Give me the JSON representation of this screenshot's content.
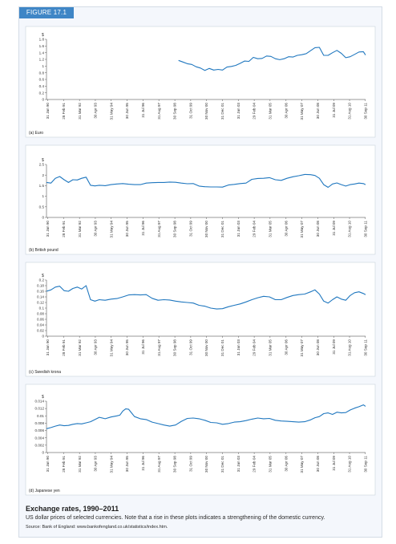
{
  "figure": {
    "label": "FIGURE 17.1",
    "caption_title": "Exchange rates, 1990–2011",
    "caption_text": "US dollar prices of selected currencies. Note that a rise in these plots indicates a strengthening of the domestic currency.",
    "source": "Source: Bank of England: www.bankofengland.co.uk/statistics/index.htm."
  },
  "colors": {
    "line": "#1f77bf",
    "tab": "#3f86c6",
    "panel_bg": "#ffffff"
  },
  "chart_data": [
    {
      "type": "line",
      "panel": "(a) Euro",
      "unit_label": "$",
      "ylim": [
        0,
        1.8
      ],
      "yticks": [
        0,
        0.2,
        0.4,
        0.6,
        0.8,
        1,
        1.2,
        1.4,
        1.6,
        1.8
      ],
      "ytick_labels": [
        "0",
        "0.2",
        "0.4",
        "0.6",
        "0.8",
        "1",
        "1.2",
        "1.4",
        "1.6",
        "1.8"
      ],
      "xlim": [
        1990.0,
        2011.75
      ],
      "xticks": [
        1990.08,
        1991.16,
        1992.25,
        1993.33,
        1994.41,
        1995.5,
        1996.58,
        1997.66,
        1998.75,
        1999.83,
        2000.91,
        2001.99,
        2003.08,
        2004.16,
        2005.24,
        2006.33,
        2007.41,
        2008.49,
        2009.58,
        2010.66,
        2011.74
      ],
      "xtick_labels": [
        "31 Jan 90",
        "28 Feb 91",
        "31 Mar 92",
        "30 Apr 93",
        "31 May 94",
        "30 Jun 95",
        "31 Jul 96",
        "31 Aug 97",
        "30 Sep 98",
        "31 Oct 99",
        "30 Nov 00",
        "31 Dec 01",
        "31 Jan 03",
        "29 Feb 04",
        "31 Mar 05",
        "30 Apr 06",
        "31 May 07",
        "30 Jun 08",
        "31 Jul 09",
        "31 Aug 10",
        "30 Sep 11"
      ],
      "series": [
        {
          "x": [
            1999.0,
            1999.3,
            1999.6,
            1999.9,
            2000.2,
            2000.5,
            2000.8,
            2001.1,
            2001.4,
            2001.7,
            2002.0,
            2002.3,
            2002.6,
            2002.9,
            2003.2,
            2003.5,
            2003.8,
            2004.1,
            2004.4,
            2004.7,
            2005.0,
            2005.3,
            2005.6,
            2005.9,
            2006.2,
            2006.5,
            2006.8,
            2007.1,
            2007.4,
            2007.7,
            2008.0,
            2008.3,
            2008.6,
            2008.9,
            2009.2,
            2009.5,
            2009.8,
            2010.1,
            2010.4,
            2010.7,
            2011.0,
            2011.3,
            2011.6,
            2011.75
          ],
          "y": [
            1.17,
            1.12,
            1.07,
            1.05,
            0.98,
            0.94,
            0.87,
            0.93,
            0.88,
            0.9,
            0.88,
            0.97,
            0.99,
            1.02,
            1.08,
            1.15,
            1.14,
            1.26,
            1.22,
            1.23,
            1.3,
            1.29,
            1.22,
            1.19,
            1.22,
            1.28,
            1.27,
            1.32,
            1.34,
            1.37,
            1.46,
            1.55,
            1.56,
            1.32,
            1.32,
            1.4,
            1.47,
            1.38,
            1.25,
            1.28,
            1.35,
            1.42,
            1.43,
            1.33
          ]
        }
      ]
    },
    {
      "type": "line",
      "panel": "(b) British pound",
      "unit_label": "$",
      "ylim": [
        0,
        2.5
      ],
      "yticks": [
        0,
        0.5,
        1,
        1.5,
        2,
        2.5
      ],
      "ytick_labels": [
        "0",
        "0.5",
        "1",
        "1.5",
        "2",
        "2.5"
      ],
      "xlim": [
        1990.0,
        2011.75
      ],
      "xticks": [
        1990.08,
        1991.16,
        1992.25,
        1993.33,
        1994.41,
        1995.5,
        1996.58,
        1997.66,
        1998.75,
        1999.83,
        2000.91,
        2001.99,
        2003.08,
        2004.16,
        2005.24,
        2006.33,
        2007.41,
        2008.49,
        2009.58,
        2010.66,
        2011.74
      ],
      "xtick_labels": [
        "31 Jan 90",
        "28 Feb 91",
        "31 Mar 92",
        "30 Apr 93",
        "31 May 94",
        "30 Jun 95",
        "31 Jul 96",
        "31 Aug 97",
        "30 Sep 98",
        "31 Oct 99",
        "30 Nov 00",
        "31 Dec 01",
        "31 Jan 03",
        "29 Feb 04",
        "31 Mar 05",
        "30 Apr 06",
        "31 May 07",
        "30 Jun 08",
        "31 Jul 09",
        "31 Aug 10",
        "30 Sep 11"
      ],
      "series": [
        {
          "x": [
            1990.0,
            1990.3,
            1990.6,
            1990.9,
            1991.2,
            1991.5,
            1991.8,
            1992.1,
            1992.4,
            1992.7,
            1993.0,
            1993.3,
            1993.6,
            1994.0,
            1994.4,
            1994.8,
            1995.2,
            1995.6,
            1996.0,
            1996.4,
            1996.8,
            1997.2,
            1997.6,
            1998.0,
            1998.4,
            1998.8,
            1999.2,
            1999.6,
            2000.0,
            2000.4,
            2000.8,
            2001.2,
            2001.6,
            2002.0,
            2002.4,
            2002.8,
            2003.2,
            2003.6,
            2004.0,
            2004.4,
            2004.8,
            2005.2,
            2005.6,
            2006.0,
            2006.4,
            2006.8,
            2007.2,
            2007.6,
            2008.0,
            2008.3,
            2008.6,
            2008.9,
            2009.2,
            2009.5,
            2009.8,
            2010.1,
            2010.4,
            2010.7,
            2011.0,
            2011.3,
            2011.6,
            2011.75
          ],
          "y": [
            1.65,
            1.62,
            1.85,
            1.93,
            1.78,
            1.65,
            1.78,
            1.77,
            1.85,
            1.9,
            1.52,
            1.49,
            1.52,
            1.5,
            1.55,
            1.58,
            1.6,
            1.57,
            1.55,
            1.55,
            1.62,
            1.64,
            1.65,
            1.65,
            1.67,
            1.66,
            1.62,
            1.59,
            1.6,
            1.48,
            1.45,
            1.44,
            1.44,
            1.43,
            1.53,
            1.56,
            1.6,
            1.62,
            1.8,
            1.84,
            1.85,
            1.88,
            1.78,
            1.75,
            1.85,
            1.92,
            1.97,
            2.03,
            2.02,
            1.98,
            1.85,
            1.55,
            1.42,
            1.58,
            1.63,
            1.55,
            1.48,
            1.55,
            1.58,
            1.62,
            1.6,
            1.55
          ]
        }
      ]
    },
    {
      "type": "line",
      "panel": "(c) Swedish krona",
      "unit_label": "$",
      "ylim": [
        0,
        0.2
      ],
      "yticks": [
        0,
        0.02,
        0.04,
        0.06,
        0.08,
        0.1,
        0.12,
        0.14,
        0.16,
        0.18,
        0.2
      ],
      "ytick_labels": [
        "0",
        "0.02",
        "0.04",
        "0.06",
        "0.08",
        "0.1",
        "0.12",
        "0.14",
        "0.16",
        "0.18",
        "0.2"
      ],
      "xlim": [
        1990.0,
        2011.75
      ],
      "xticks": [
        1990.08,
        1991.16,
        1992.25,
        1993.33,
        1994.41,
        1995.5,
        1996.58,
        1997.66,
        1998.75,
        1999.83,
        2000.91,
        2001.99,
        2003.08,
        2004.16,
        2005.24,
        2006.33,
        2007.41,
        2008.49,
        2009.58,
        2010.66,
        2011.74
      ],
      "xtick_labels": [
        "31 Jan 90",
        "28 Feb 91",
        "31 Mar 92",
        "30 Apr 93",
        "31 May 94",
        "30 Jun 95",
        "31 Jul 96",
        "31 Aug 97",
        "30 Sep 98",
        "31 Oct 99",
        "30 Nov 00",
        "31 Dec 01",
        "31 Jan 03",
        "29 Feb 04",
        "31 Mar 05",
        "30 Apr 06",
        "31 May 07",
        "30 Jun 08",
        "31 Jul 09",
        "31 Aug 10",
        "30 Sep 11"
      ],
      "series": [
        {
          "x": [
            1990.0,
            1990.3,
            1990.6,
            1990.9,
            1991.2,
            1991.5,
            1991.8,
            1992.1,
            1992.4,
            1992.7,
            1993.0,
            1993.3,
            1993.6,
            1994.0,
            1994.4,
            1994.8,
            1995.2,
            1995.6,
            1996.0,
            1996.4,
            1996.8,
            1997.2,
            1997.6,
            1998.0,
            1998.4,
            1998.8,
            1999.2,
            1999.6,
            2000.0,
            2000.4,
            2000.8,
            2001.2,
            2001.6,
            2002.0,
            2002.4,
            2002.8,
            2003.2,
            2003.6,
            2004.0,
            2004.4,
            2004.8,
            2005.2,
            2005.6,
            2006.0,
            2006.4,
            2006.8,
            2007.2,
            2007.6,
            2008.0,
            2008.3,
            2008.6,
            2008.9,
            2009.2,
            2009.5,
            2009.8,
            2010.1,
            2010.4,
            2010.7,
            2011.0,
            2011.3,
            2011.6,
            2011.75
          ],
          "y": [
            0.16,
            0.165,
            0.175,
            0.178,
            0.162,
            0.16,
            0.17,
            0.175,
            0.168,
            0.18,
            0.13,
            0.125,
            0.13,
            0.128,
            0.132,
            0.134,
            0.14,
            0.147,
            0.148,
            0.147,
            0.148,
            0.135,
            0.128,
            0.13,
            0.129,
            0.125,
            0.122,
            0.12,
            0.118,
            0.11,
            0.107,
            0.1,
            0.097,
            0.098,
            0.105,
            0.11,
            0.115,
            0.122,
            0.13,
            0.137,
            0.142,
            0.14,
            0.13,
            0.13,
            0.138,
            0.145,
            0.148,
            0.15,
            0.158,
            0.165,
            0.15,
            0.125,
            0.118,
            0.13,
            0.14,
            0.132,
            0.128,
            0.145,
            0.155,
            0.158,
            0.152,
            0.148
          ]
        }
      ]
    },
    {
      "type": "line",
      "panel": "(d) Japanese yen",
      "unit_label": "$",
      "ylim": [
        0,
        0.014
      ],
      "yticks": [
        0,
        0.002,
        0.004,
        0.006,
        0.008,
        0.01,
        0.012,
        0.014
      ],
      "ytick_labels": [
        "0",
        "0.002",
        "0.004",
        "0.006",
        "0.008",
        "0.01",
        "0.012",
        "0.014"
      ],
      "xlim": [
        1990.0,
        2011.75
      ],
      "xticks": [
        1990.08,
        1991.16,
        1992.25,
        1993.33,
        1994.41,
        1995.5,
        1996.58,
        1997.66,
        1998.75,
        1999.83,
        2000.91,
        2001.99,
        2003.08,
        2004.16,
        2005.24,
        2006.33,
        2007.41,
        2008.49,
        2009.58,
        2010.66,
        2011.74
      ],
      "xtick_labels": [
        "31 Jan 90",
        "28 Feb 91",
        "31 Mar 92",
        "30 Apr 93",
        "31 May 94",
        "30 Jun 95",
        "31 Jul 96",
        "31 Aug 97",
        "30 Sep 98",
        "31 Oct 99",
        "30 Nov 00",
        "31 Dec 01",
        "31 Jan 03",
        "29 Feb 04",
        "31 Mar 05",
        "30 Apr 06",
        "31 May 07",
        "30 Jun 08",
        "31 Jul 09",
        "31 Aug 10",
        "30 Sep 11"
      ],
      "series": [
        {
          "x": [
            1990.0,
            1990.3,
            1990.6,
            1990.9,
            1991.2,
            1991.5,
            1991.8,
            1992.1,
            1992.4,
            1992.7,
            1993.0,
            1993.3,
            1993.6,
            1994.0,
            1994.4,
            1994.8,
            1995.0,
            1995.2,
            1995.4,
            1995.6,
            1995.8,
            1996.0,
            1996.4,
            1996.8,
            1997.2,
            1997.6,
            1998.0,
            1998.4,
            1998.8,
            1999.2,
            1999.6,
            2000.0,
            2000.4,
            2000.8,
            2001.2,
            2001.6,
            2002.0,
            2002.4,
            2002.8,
            2003.2,
            2003.6,
            2004.0,
            2004.4,
            2004.8,
            2005.2,
            2005.6,
            2006.0,
            2006.4,
            2006.8,
            2007.2,
            2007.6,
            2008.0,
            2008.3,
            2008.6,
            2008.9,
            2009.2,
            2009.5,
            2009.8,
            2010.1,
            2010.4,
            2010.7,
            2011.0,
            2011.3,
            2011.6,
            2011.75
          ],
          "y": [
            0.0065,
            0.0068,
            0.0072,
            0.0075,
            0.0073,
            0.0074,
            0.0077,
            0.0079,
            0.0078,
            0.0081,
            0.0084,
            0.009,
            0.0096,
            0.0092,
            0.0097,
            0.01,
            0.0102,
            0.0113,
            0.0119,
            0.0118,
            0.0108,
            0.0098,
            0.0092,
            0.009,
            0.0083,
            0.0079,
            0.0075,
            0.0072,
            0.0075,
            0.0085,
            0.0093,
            0.0094,
            0.0092,
            0.0088,
            0.0082,
            0.0081,
            0.0077,
            0.0079,
            0.0083,
            0.0084,
            0.0087,
            0.0091,
            0.0094,
            0.0092,
            0.0093,
            0.0088,
            0.0086,
            0.0085,
            0.0084,
            0.0083,
            0.0084,
            0.0089,
            0.0095,
            0.0098,
            0.0106,
            0.0108,
            0.0104,
            0.011,
            0.0108,
            0.0109,
            0.0116,
            0.0121,
            0.0125,
            0.013,
            0.0126
          ]
        }
      ]
    }
  ]
}
